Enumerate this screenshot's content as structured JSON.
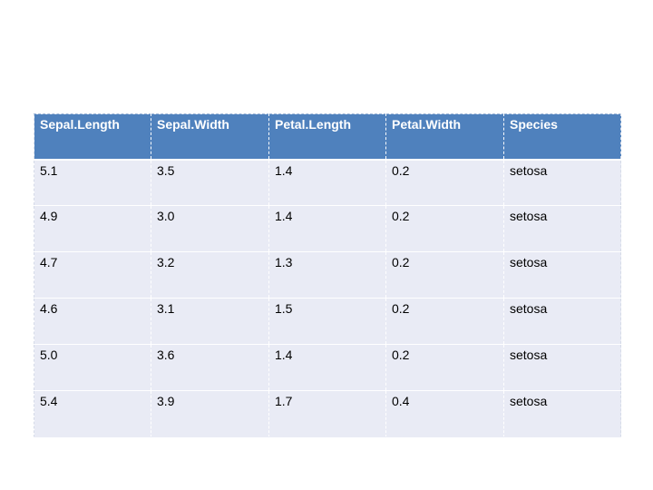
{
  "table": {
    "header": [
      "Sepal.Length",
      "Sepal.Width",
      "Petal.Length",
      "Petal.Width",
      "Species"
    ],
    "rows": [
      [
        "5.1",
        "3.5",
        "1.4",
        "0.2",
        "setosa"
      ],
      [
        "4.9",
        "3.0",
        "1.4",
        "0.2",
        "setosa"
      ],
      [
        "4.7",
        "3.2",
        "1.3",
        "0.2",
        "setosa"
      ],
      [
        "4.6",
        "3.1",
        "1.5",
        "0.2",
        "setosa"
      ],
      [
        "5.0",
        "3.6",
        "1.4",
        "0.2",
        "setosa"
      ],
      [
        "5.4",
        "3.9",
        "1.7",
        "0.4",
        "setosa"
      ]
    ]
  },
  "colors": {
    "header_background": "#4f81bd",
    "row_background": "#e9ebf5",
    "header_text": "#ffffff"
  }
}
